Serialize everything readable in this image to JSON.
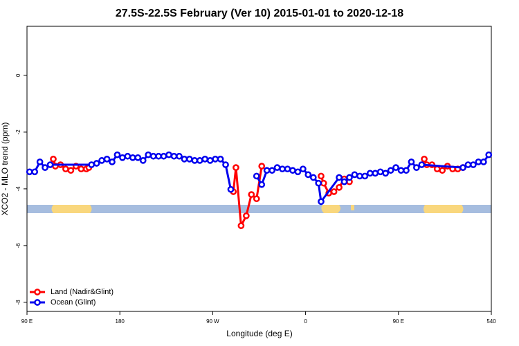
{
  "chart_data": {
    "type": "line",
    "title": "27.5S-22.5S February (Ver 10)   2015-01-01 to 2020-12-18",
    "x_label": "Longitude (deg E)",
    "y_label": "XCO2 - MLO trend (ppm)",
    "xlim": [
      90,
      540
    ],
    "xticks": [
      {
        "value": 90,
        "label": "90 E"
      },
      180,
      {
        "value": 270,
        "label": "90 W"
      },
      {
        "value": 360,
        "label": "0"
      },
      {
        "value": 450,
        "label": "90 E"
      },
      540
    ],
    "ylim": [
      -8.32,
      1.73
    ],
    "yticks": [
      0,
      -2,
      -4,
      -6,
      -8
    ],
    "legend": "bottom-left",
    "series": [
      {
        "name": "Land (Nadir&Glint)",
        "color": "#ff0000",
        "x": [
          115.5,
          117.5,
          122.5,
          127.5,
          132.5,
          137.5,
          142.5,
          147.5,
          150,
          null,
          290,
          292.5,
          297.5,
          302.5,
          307.5,
          312.5,
          317.5,
          null,
          375,
          377.5,
          382.5,
          387.5,
          392.5,
          397.5,
          402.5,
          null,
          475,
          477.5,
          482.5,
          487.5,
          492.5,
          497.5,
          502.5,
          507.5,
          512.5
        ],
        "values": [
          -2.95,
          -3.2,
          -3.15,
          -3.3,
          -3.35,
          -3.2,
          -3.3,
          -3.3,
          -3.25,
          null,
          -4.1,
          -3.25,
          -5.3,
          -4.95,
          -4.2,
          -4.35,
          -3.2,
          null,
          -3.55,
          -3.8,
          -4.15,
          -4.1,
          -3.95,
          -3.65,
          -3.75,
          null,
          -2.95,
          -3.15,
          -3.15,
          -3.3,
          -3.35,
          -3.2,
          -3.3,
          -3.3,
          -3.25
        ]
      },
      {
        "name": "Ocean (Glint)",
        "color": "#0000ee",
        "x": [
          92.5,
          97.5,
          102.5,
          107.5,
          112.5,
          152.5,
          157.5,
          162.5,
          167.5,
          172.5,
          177.5,
          182.5,
          187.5,
          192.5,
          197.5,
          202.5,
          207.5,
          212.5,
          217.5,
          222.5,
          227.5,
          232.5,
          237.5,
          242.5,
          247.5,
          252.5,
          257.5,
          262.5,
          267.5,
          272.5,
          277.5,
          282.5,
          287.5,
          null,
          312.5,
          317.5,
          322.5,
          327.5,
          332.5,
          337.5,
          342.5,
          347.5,
          352.5,
          357.5,
          362.5,
          367.5,
          372.5,
          375,
          392.5,
          397.5,
          402.5,
          407.5,
          412.5,
          417.5,
          422.5,
          427.5,
          432.5,
          437.5,
          442.5,
          447.5,
          452.5,
          457.5,
          462.5,
          467.5,
          472.5,
          512.5,
          517.5,
          522.5,
          527.5,
          532.5,
          537.5
        ],
        "values": [
          -3.4,
          -3.4,
          -3.05,
          -3.25,
          -3.15,
          -3.15,
          -3.1,
          -3.0,
          -2.95,
          -3.05,
          -2.8,
          -2.9,
          -2.85,
          -2.9,
          -2.9,
          -3.0,
          -2.8,
          -2.85,
          -2.85,
          -2.85,
          -2.8,
          -2.85,
          -2.85,
          -2.95,
          -2.95,
          -3.0,
          -3.0,
          -2.95,
          -3.0,
          -2.95,
          -2.95,
          -3.15,
          -4.02,
          null,
          -3.55,
          -3.85,
          -3.35,
          -3.35,
          -3.25,
          -3.3,
          -3.3,
          -3.35,
          -3.4,
          -3.3,
          -3.5,
          -3.6,
          -3.8,
          -4.45,
          -3.6,
          -3.75,
          -3.6,
          -3.5,
          -3.55,
          -3.55,
          -3.45,
          -3.45,
          -3.4,
          -3.45,
          -3.35,
          -3.25,
          -3.35,
          -3.35,
          -3.05,
          -3.25,
          -3.15,
          -3.25,
          -3.15,
          -3.15,
          -3.05,
          -3.05,
          -2.8
        ]
      }
    ]
  }
}
